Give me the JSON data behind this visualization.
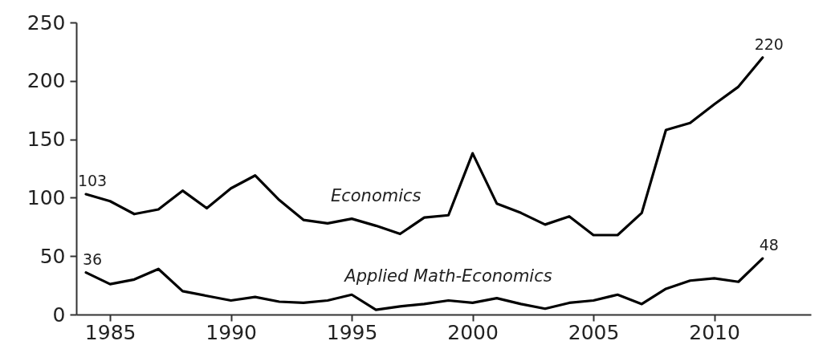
{
  "chart_data": {
    "type": "line",
    "x": [
      1984,
      1985,
      1986,
      1987,
      1988,
      1989,
      1990,
      1991,
      1992,
      1993,
      1994,
      1995,
      1996,
      1997,
      1998,
      1999,
      2000,
      2001,
      2002,
      2003,
      2004,
      2005,
      2006,
      2007,
      2008,
      2009,
      2010,
      2011,
      2012
    ],
    "series": [
      {
        "name": "Economics",
        "color": "#000000",
        "values": [
          103,
          97,
          86,
          90,
          106,
          91,
          108,
          119,
          98,
          81,
          78,
          82,
          76,
          69,
          83,
          85,
          138,
          95,
          87,
          77,
          84,
          68,
          68,
          87,
          158,
          164,
          180,
          195,
          220
        ],
        "value_labels": [
          "103",
          null,
          null,
          null,
          null,
          null,
          null,
          null,
          null,
          null,
          null,
          null,
          null,
          null,
          null,
          null,
          null,
          null,
          null,
          null,
          null,
          null,
          null,
          null,
          null,
          null,
          null,
          null,
          "220"
        ]
      },
      {
        "name": "Applied Math-Economics",
        "color": "#000000",
        "values": [
          36,
          26,
          30,
          39,
          20,
          16,
          12,
          15,
          11,
          10,
          12,
          17,
          4,
          7,
          9,
          12,
          10,
          14,
          9,
          5,
          10,
          12,
          17,
          9,
          22,
          29,
          31,
          28,
          48
        ],
        "value_labels": [
          "36",
          null,
          null,
          null,
          null,
          null,
          null,
          null,
          null,
          null,
          null,
          null,
          null,
          null,
          null,
          null,
          null,
          null,
          null,
          null,
          null,
          null,
          null,
          null,
          null,
          null,
          null,
          null,
          "48"
        ]
      }
    ],
    "xlim": [
      1983.6,
      2014
    ],
    "xticks": [
      1985,
      1990,
      1995,
      2000,
      2005,
      2010
    ],
    "ylim": [
      0,
      250
    ],
    "yticks": [
      0,
      50,
      100,
      150,
      200,
      250
    ],
    "grid": false,
    "legend": false,
    "marker": "none",
    "line_style": "solid"
  }
}
